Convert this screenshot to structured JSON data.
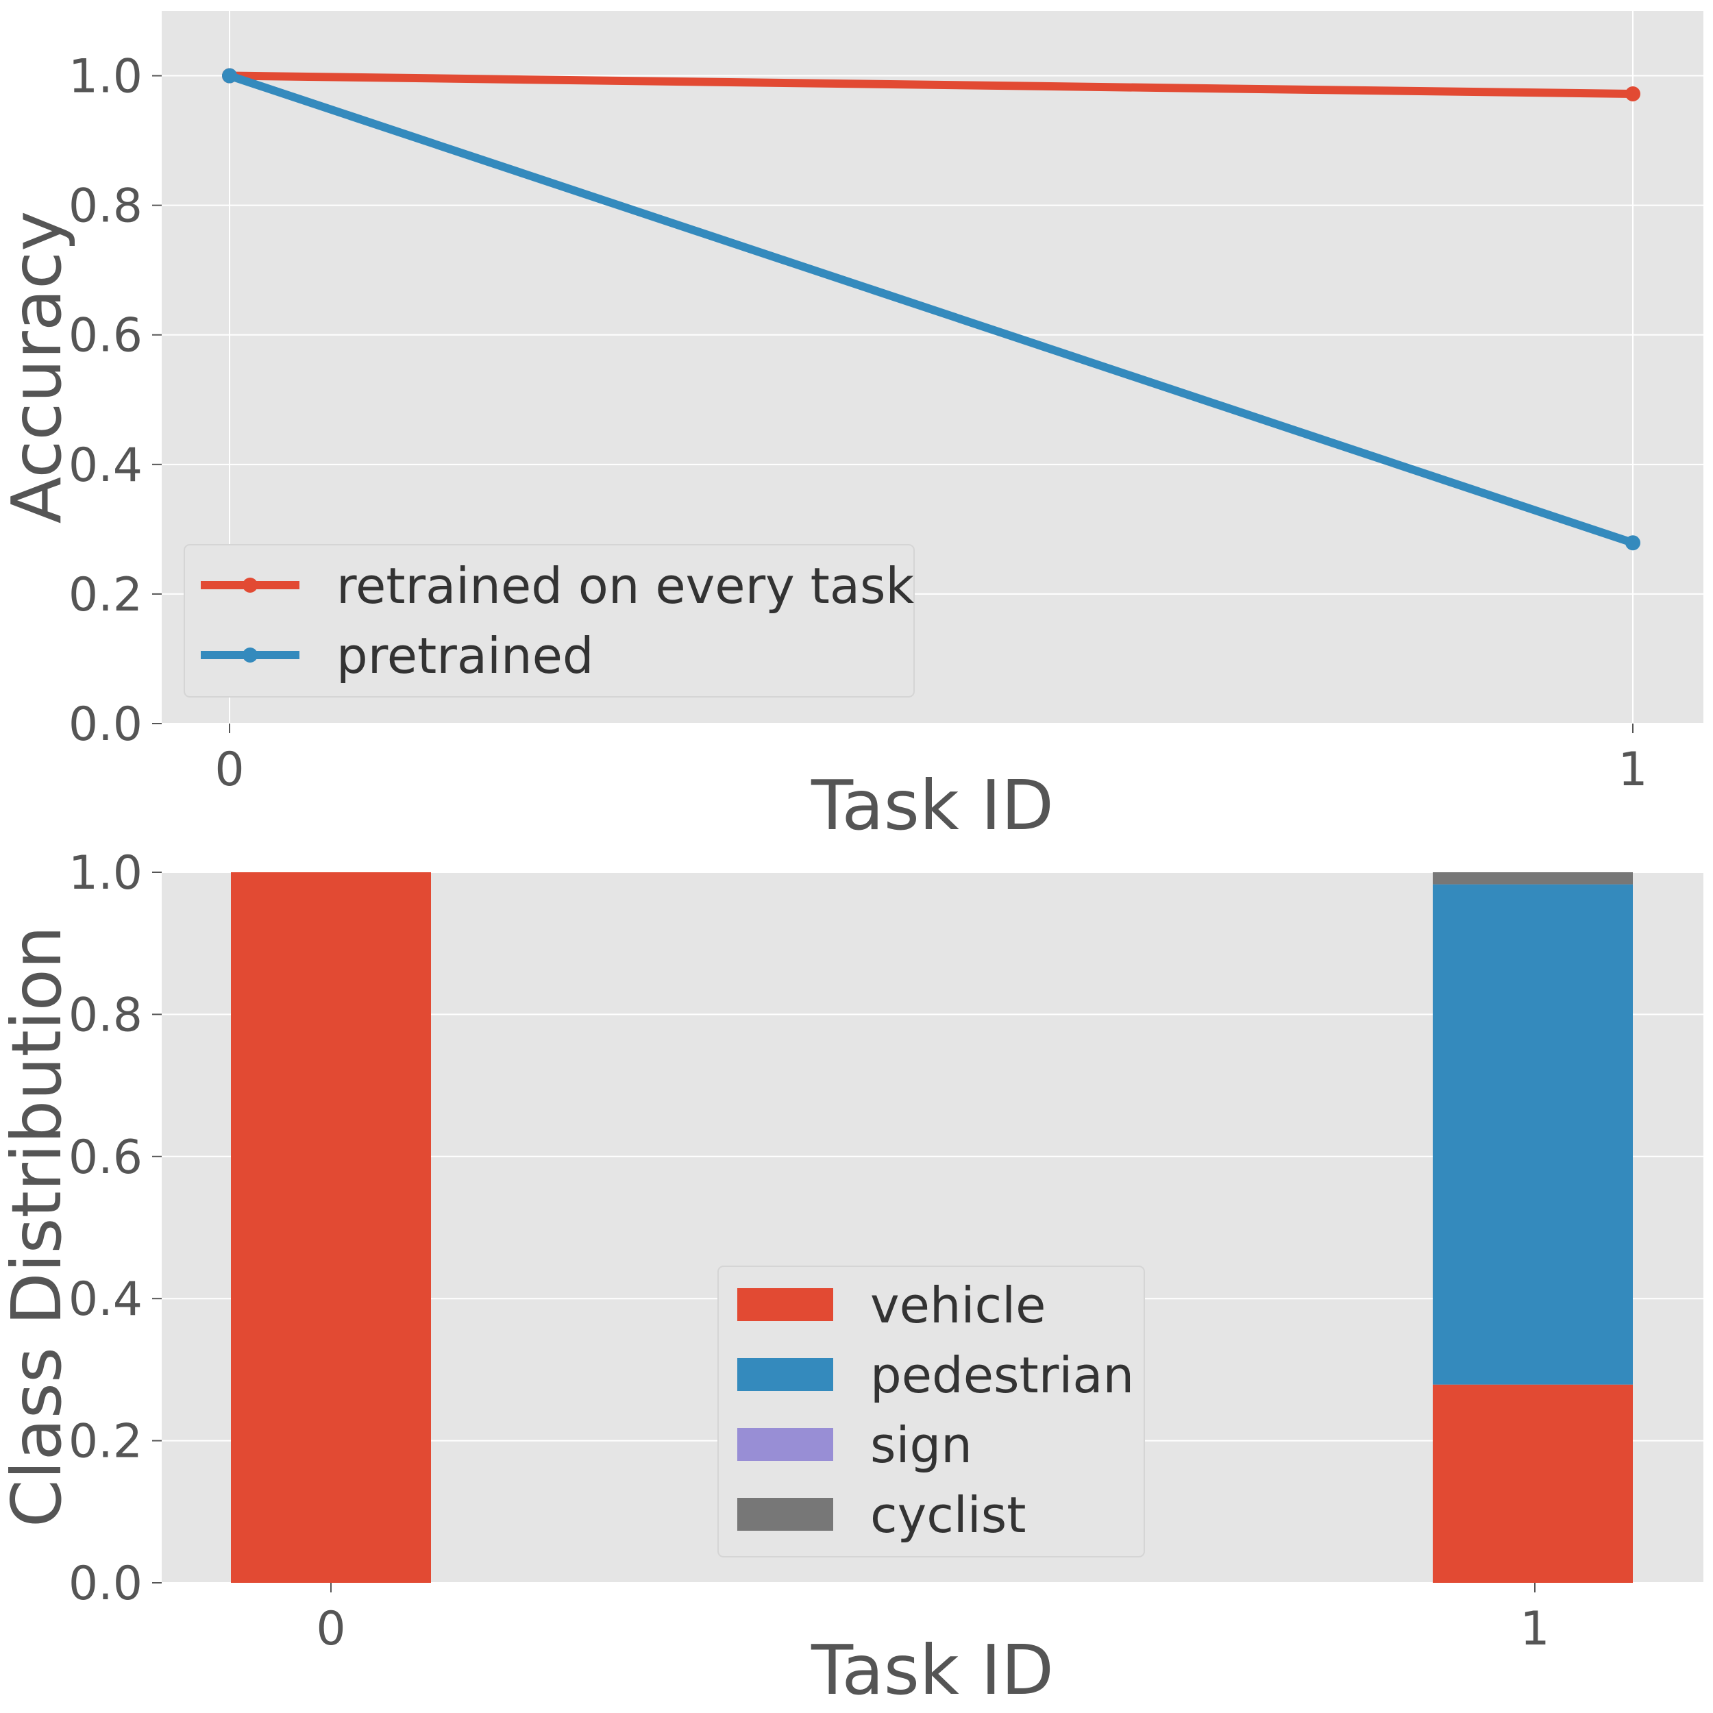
{
  "chart_data": [
    {
      "type": "line",
      "title": "",
      "xlabel": "Task ID",
      "ylabel": "Accuracy",
      "x": [
        0,
        1
      ],
      "xticks": [
        "0",
        "1"
      ],
      "yticks": [
        "0.0",
        "0.2",
        "0.4",
        "0.6",
        "0.8",
        "1.0"
      ],
      "ylim": [
        0,
        1.1
      ],
      "grid": true,
      "legend_position": "lower-left",
      "series": [
        {
          "name": "retrained on every task",
          "values": [
            1.0,
            0.972
          ],
          "color": "#E24A33"
        },
        {
          "name": "pretrained",
          "values": [
            1.0,
            0.279
          ],
          "color": "#348ABD"
        }
      ]
    },
    {
      "type": "bar",
      "stacked": true,
      "title": "",
      "xlabel": "Task ID",
      "ylabel": "Class Distribution",
      "categories": [
        "0",
        "1"
      ],
      "yticks": [
        "0.0",
        "0.2",
        "0.4",
        "0.6",
        "0.8",
        "1.0"
      ],
      "ylim": [
        0,
        1.0
      ],
      "grid": true,
      "legend_position": "lower-center",
      "series": [
        {
          "name": "vehicle",
          "values": [
            1.0,
            0.279
          ],
          "color": "#E24A33"
        },
        {
          "name": "pedestrian",
          "values": [
            0.0,
            0.704
          ],
          "color": "#348ABD"
        },
        {
          "name": "sign",
          "values": [
            0.0,
            0.0
          ],
          "color": "#988ED5"
        },
        {
          "name": "cyclist",
          "values": [
            0.0,
            0.017
          ],
          "color": "#777777"
        }
      ]
    }
  ]
}
